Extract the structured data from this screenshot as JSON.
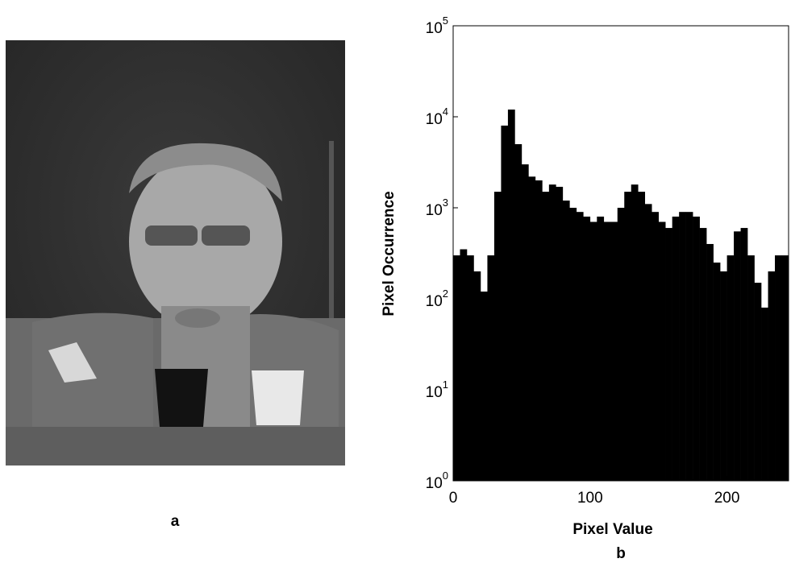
{
  "image": {
    "caption": "a"
  },
  "chart_data": {
    "type": "histogram",
    "caption": "b",
    "xlabel": "Pixel Value",
    "ylabel": "Pixel Occurrence",
    "bins": [
      0,
      5,
      10,
      15,
      20,
      25,
      30,
      35,
      40,
      45,
      50,
      55,
      60,
      65,
      70,
      75,
      80,
      85,
      90,
      95,
      100,
      105,
      110,
      115,
      120,
      125,
      130,
      135,
      140,
      145,
      150,
      155,
      160,
      165,
      170,
      175,
      180,
      185,
      190,
      195,
      200,
      205,
      210,
      215,
      220,
      225,
      230,
      235,
      240,
      245
    ],
    "counts": [
      300,
      350,
      300,
      200,
      120,
      300,
      1500,
      8000,
      12000,
      5000,
      3000,
      2200,
      2000,
      1500,
      1800,
      1700,
      1200,
      1000,
      900,
      800,
      700,
      800,
      700,
      700,
      1000,
      1500,
      1800,
      1500,
      1100,
      900,
      700,
      600,
      800,
      900,
      900,
      800,
      600,
      400,
      250,
      200,
      300,
      550,
      600,
      300,
      150,
      80,
      200,
      300,
      300
    ],
    "color": "#000000",
    "log_y": true,
    "xlim": [
      0,
      245
    ],
    "ylim": [
      1,
      100000
    ],
    "xticks": [
      0,
      100,
      200
    ],
    "yticks": [
      {
        "value": 1,
        "label": "10^0"
      },
      {
        "value": 10,
        "label": "10^1"
      },
      {
        "value": 100,
        "label": "10^2"
      },
      {
        "value": 1000,
        "label": "10^3"
      },
      {
        "value": 10000,
        "label": "10^4"
      },
      {
        "value": 100000,
        "label": "10^5"
      }
    ]
  }
}
